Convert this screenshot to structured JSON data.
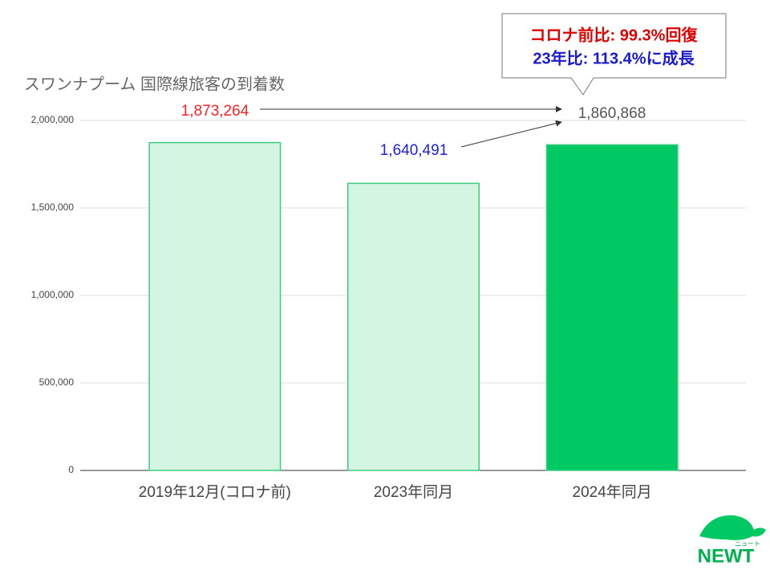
{
  "chart_data": {
    "type": "bar",
    "title": "スワンナプーム 国際線旅客の到着数",
    "categories": [
      "2019年12月(コロナ前)",
      "2023年同月",
      "2024年同月"
    ],
    "values": [
      1873264,
      1640491,
      1860868
    ],
    "value_labels": [
      "1,873,264",
      "1,640,491",
      "1,860,868"
    ],
    "value_label_colors": [
      "#ff2020",
      "#2020e0",
      "#555555"
    ],
    "colors": [
      "#d4f5e2",
      "#d4f5e2",
      "#00c862"
    ],
    "edgecolor": "#3dcf7f",
    "ylim": [
      0,
      2000000
    ],
    "yticks": [
      0,
      {
        "value": 500000,
        "label": "500,000"
      },
      {
        "value": 1000000,
        "label": "1,000,000"
      },
      {
        "value": 1500000,
        "label": "1,500,000"
      },
      {
        "value": 2000000,
        "label": "2,000,000"
      }
    ],
    "grid": true,
    "annotations": [
      {
        "text": "コロナ前比: 99.3%回復",
        "color": "#e00000"
      },
      {
        "text": "23年比: 113.4%に成長",
        "color": "#1a1ad0"
      }
    ]
  },
  "logo": {
    "name": "NEWT",
    "subtext": "ニュート"
  }
}
